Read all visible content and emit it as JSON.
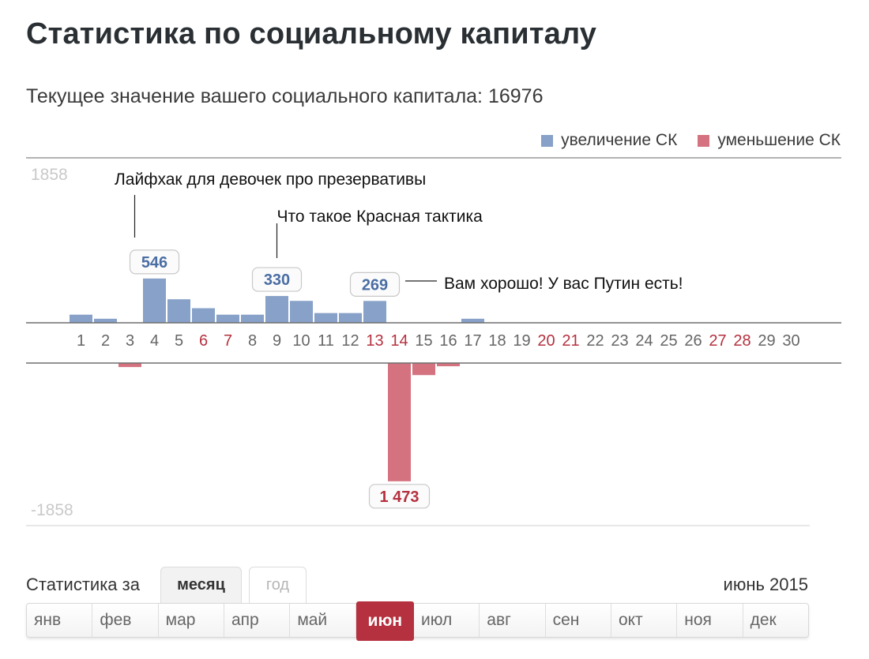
{
  "header": {
    "title": "Статистика по социальному капиталу",
    "current_label": "Текущее значение вашего социального капитала: 16976"
  },
  "legend": {
    "increase": "увеличение СК",
    "decrease": "уменьшение СК"
  },
  "colors": {
    "increase": "#87a1c8",
    "decrease": "#d4727f",
    "increase_label": "#4a6da3",
    "decrease_label": "#b5313f",
    "weekend": "#b5313f",
    "weekday": "#666666"
  },
  "chart_data": {
    "type": "bar",
    "ylim": [
      -1858,
      1858
    ],
    "ymax_label": "1858",
    "ymin_label": "-1858",
    "categories": [
      "1",
      "2",
      "3",
      "4",
      "5",
      "6",
      "7",
      "8",
      "9",
      "10",
      "11",
      "12",
      "13",
      "14",
      "15",
      "16",
      "17",
      "18",
      "19",
      "20",
      "21",
      "22",
      "23",
      "24",
      "25",
      "26",
      "27",
      "28",
      "29",
      "30"
    ],
    "weekend_days": [
      6,
      7,
      13,
      14,
      20,
      21,
      27,
      28
    ],
    "series": [
      {
        "name": "увеличение СК",
        "values": [
          100,
          50,
          0,
          546,
          290,
          180,
          100,
          100,
          330,
          270,
          120,
          120,
          269,
          0,
          0,
          0,
          50,
          0,
          0,
          0,
          0,
          0,
          0,
          0,
          0,
          0,
          0,
          0,
          0,
          0
        ]
      },
      {
        "name": "уменьшение СК",
        "values": [
          0,
          0,
          50,
          0,
          0,
          0,
          0,
          0,
          0,
          0,
          0,
          0,
          0,
          1473,
          150,
          40,
          0,
          0,
          0,
          0,
          0,
          0,
          0,
          0,
          0,
          0,
          0,
          0,
          0,
          0
        ]
      }
    ],
    "value_labels": [
      {
        "day": 4,
        "text": "546",
        "series": "increase"
      },
      {
        "day": 9,
        "text": "330",
        "series": "increase"
      },
      {
        "day": 13,
        "text": "269",
        "series": "increase"
      },
      {
        "day": 14,
        "text": "1 473",
        "series": "decrease"
      }
    ],
    "annotations": [
      {
        "day": 4,
        "text": "Лайфхак для девочек про презервативы"
      },
      {
        "day": 9,
        "text": "Что такое Красная тактика"
      },
      {
        "day": 13,
        "text": "Вам хорошо! У вас Путин есть!"
      }
    ]
  },
  "period": {
    "label": "Статистика за",
    "tabs": [
      "месяц",
      "год"
    ],
    "active_tab": "месяц",
    "current": "июнь 2015"
  },
  "months": [
    "янв",
    "фев",
    "мар",
    "апр",
    "май",
    "июн",
    "июл",
    "авг",
    "сен",
    "окт",
    "ноя",
    "дек"
  ],
  "active_month": "июн"
}
